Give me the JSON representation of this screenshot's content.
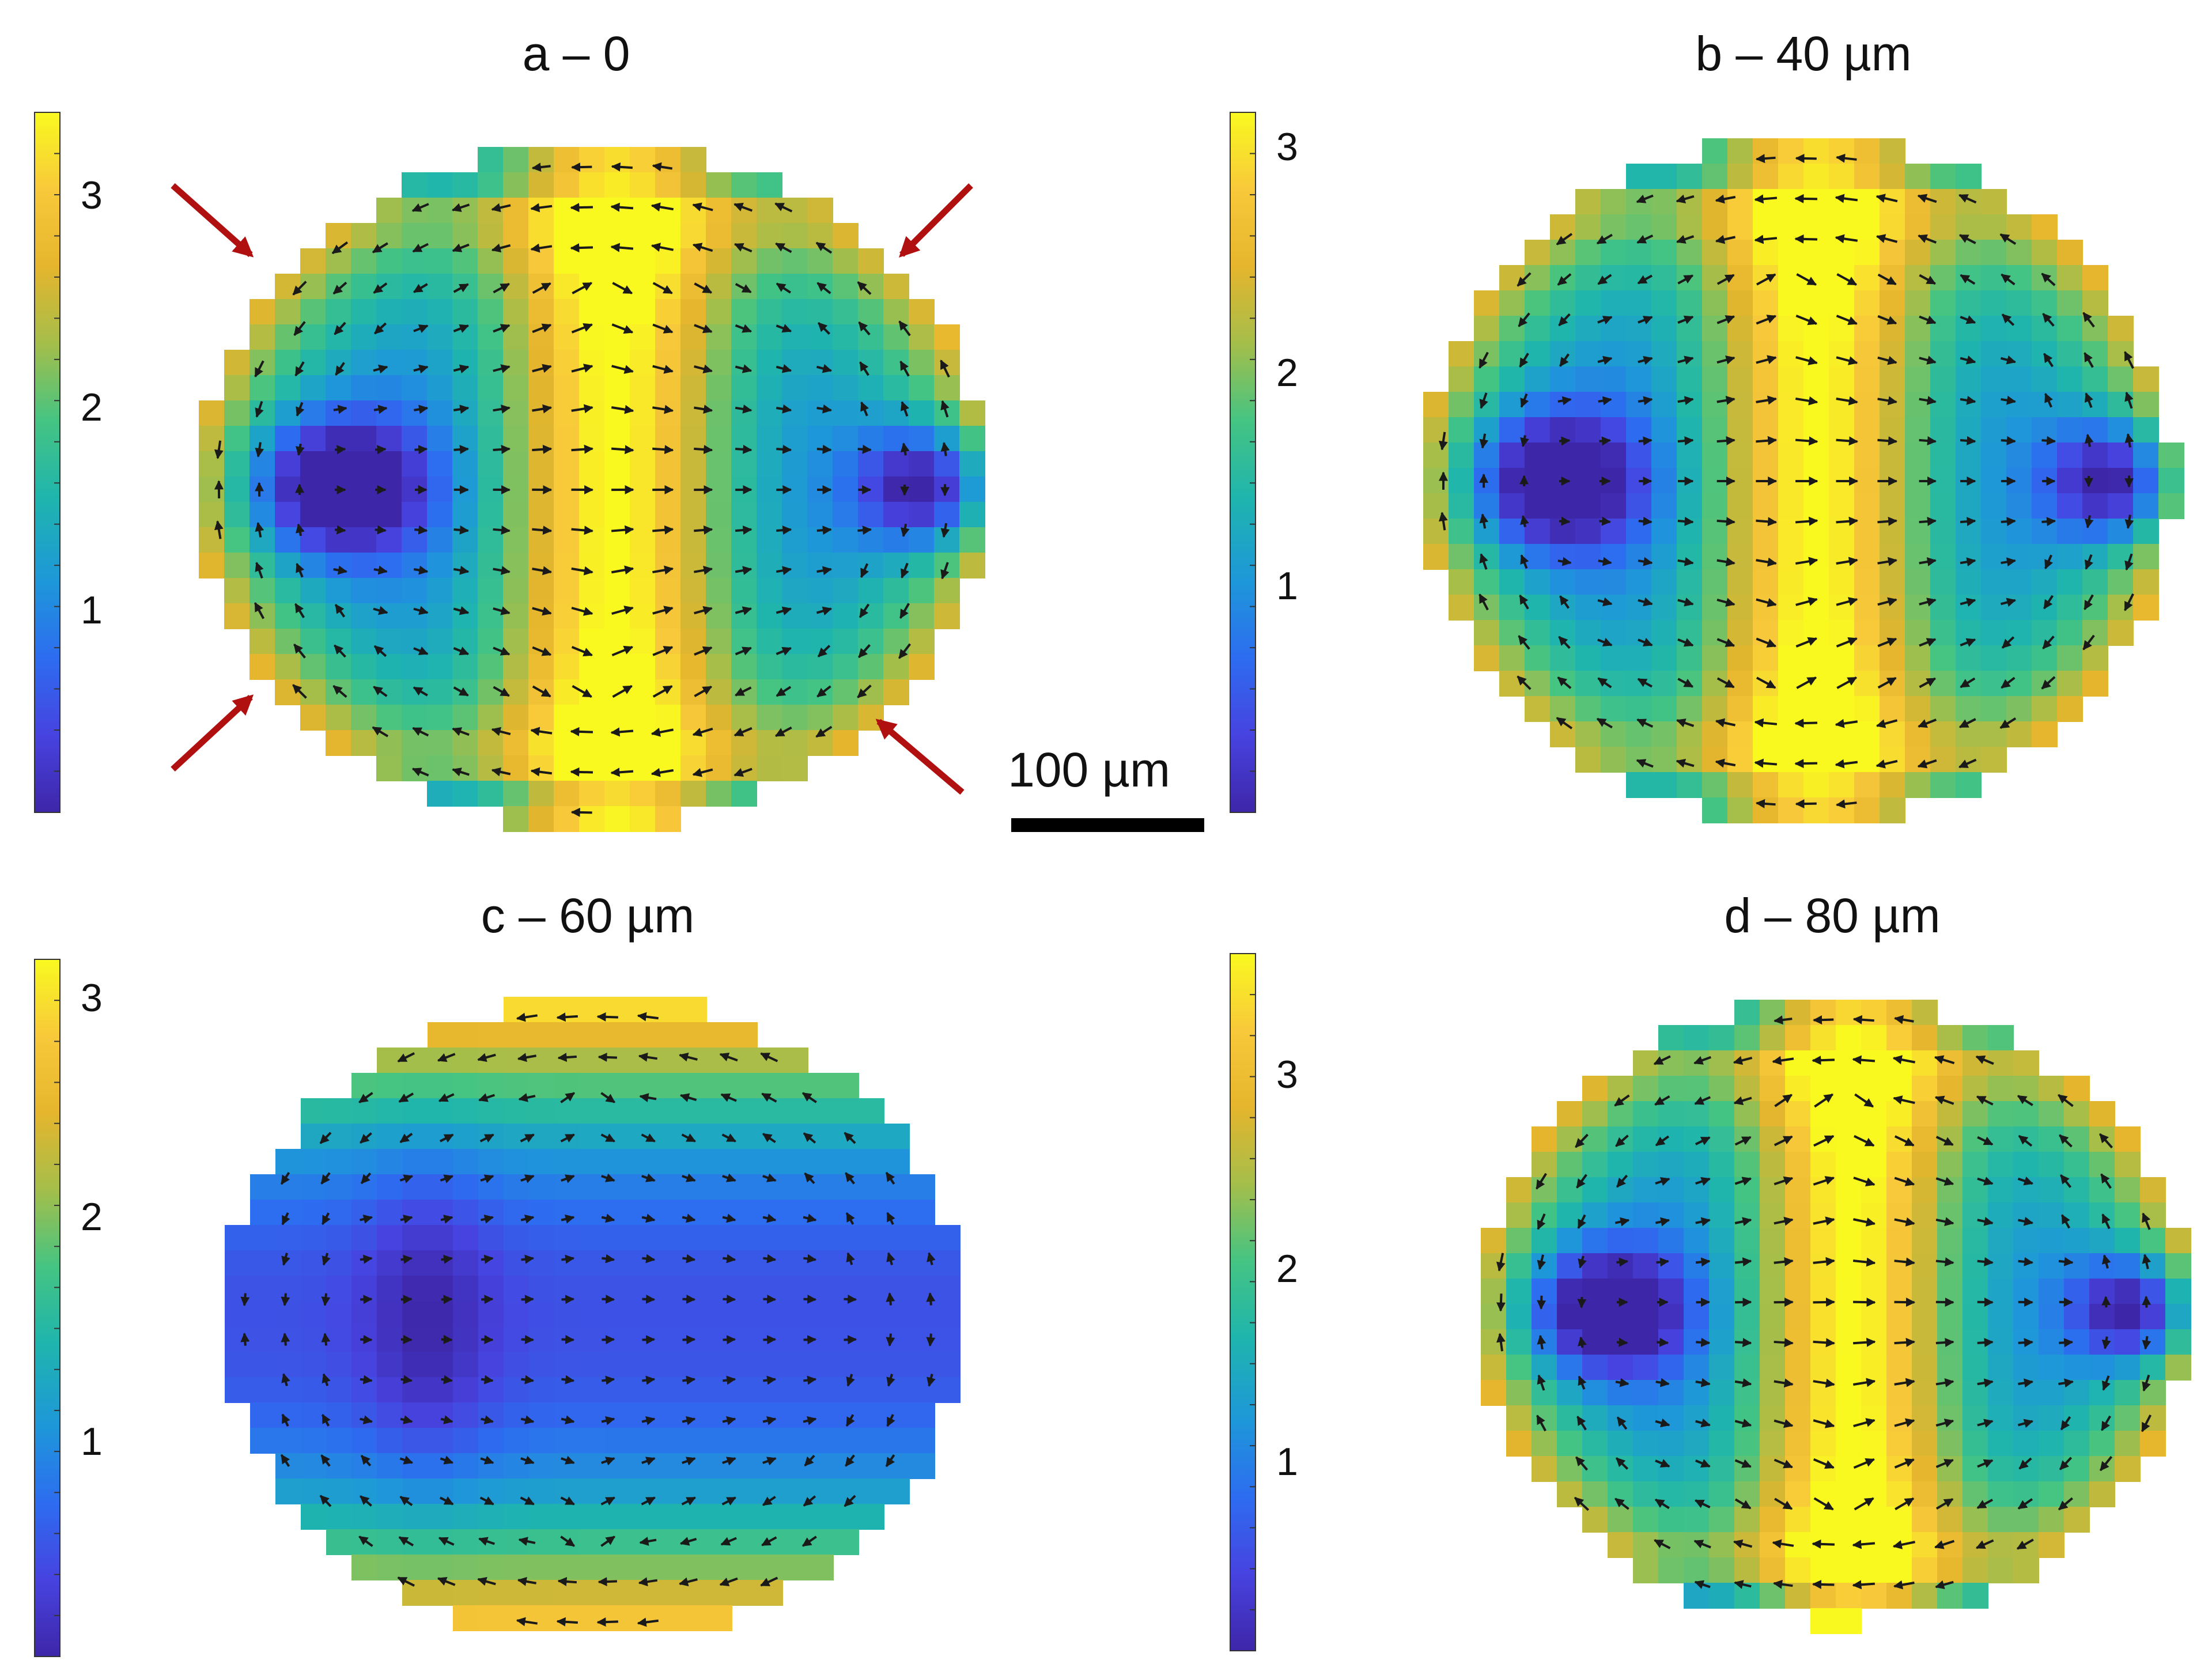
{
  "colormap": [
    "#3e26a8",
    "#4743e0",
    "#2d6cf0",
    "#1e97d9",
    "#1fb5ad",
    "#45c482",
    "#a5be4a",
    "#e5b52d",
    "#f8c93a",
    "#f9f920"
  ],
  "arrow_color": "#1a1a1a",
  "indicator_arrow_color": "#b01010",
  "panels": [
    {
      "id": "a",
      "title": "a – 0",
      "colorbar_ticks": [
        "1",
        "2",
        "3"
      ],
      "colorbar_range": [
        0,
        3.3
      ],
      "pattern": "center-band",
      "has_indicator_arrows": true
    },
    {
      "id": "b",
      "title": "b – 40 µm",
      "colorbar_ticks": [
        "1",
        "2",
        "3"
      ],
      "colorbar_range": [
        0,
        3.2
      ],
      "pattern": "center-band",
      "has_indicator_arrows": false
    },
    {
      "id": "c",
      "title": "c – 60 µm",
      "colorbar_ticks": [
        "1",
        "2",
        "3"
      ],
      "colorbar_range": [
        0,
        3.2
      ],
      "pattern": "edge-ring",
      "has_indicator_arrows": false
    },
    {
      "id": "d",
      "title": "d – 80 µm",
      "colorbar_ticks": [
        "1",
        "2",
        "3"
      ],
      "colorbar_range": [
        0,
        3.6
      ],
      "pattern": "center-band",
      "has_indicator_arrows": false
    }
  ],
  "scale_bar": {
    "label": "100 µm"
  }
}
